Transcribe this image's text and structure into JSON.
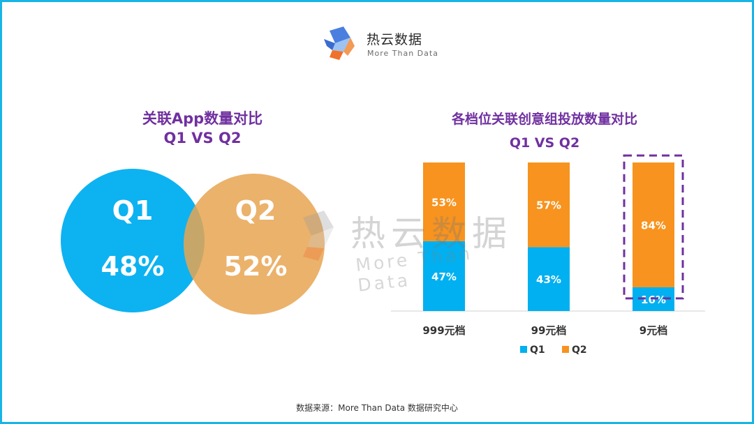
{
  "brand": {
    "name": "热云数据",
    "tagline": "More Than Data",
    "colors": {
      "blue": "#4a7fe0",
      "orange": "#f0712b",
      "light_blue": "#9cc3f2"
    }
  },
  "left_chart": {
    "title_line1": "关联App数量对比",
    "title_line2": "Q1 VS Q2",
    "circles": [
      {
        "label": "Q1",
        "value": "48%",
        "color": "#00aef0"
      },
      {
        "label": "Q2",
        "value": "52%",
        "color": "#e8a451"
      }
    ]
  },
  "right_chart": {
    "title_line1": "各档位关联创意组投放数量对比",
    "title_line2": "Q1 VS Q2"
  },
  "chart_data": {
    "type": "bar",
    "stacked": true,
    "percent": true,
    "categories": [
      "999元档",
      "99元档",
      "9元档"
    ],
    "series": [
      {
        "name": "Q1",
        "values": [
          47,
          43,
          16
        ],
        "labels": [
          "47%",
          "43%",
          "16%"
        ],
        "color": "#00b0f0"
      },
      {
        "name": "Q2",
        "values": [
          53,
          57,
          84
        ],
        "labels": [
          "53%",
          "57%",
          "84%"
        ],
        "color": "#f7931e"
      }
    ],
    "ylim": [
      0,
      100
    ],
    "highlight_category": "9元档",
    "highlight_color": "#7030a0",
    "legend_position": "bottom"
  },
  "footer": {
    "source": "数据来源：More Than Data 数据研究中心"
  }
}
